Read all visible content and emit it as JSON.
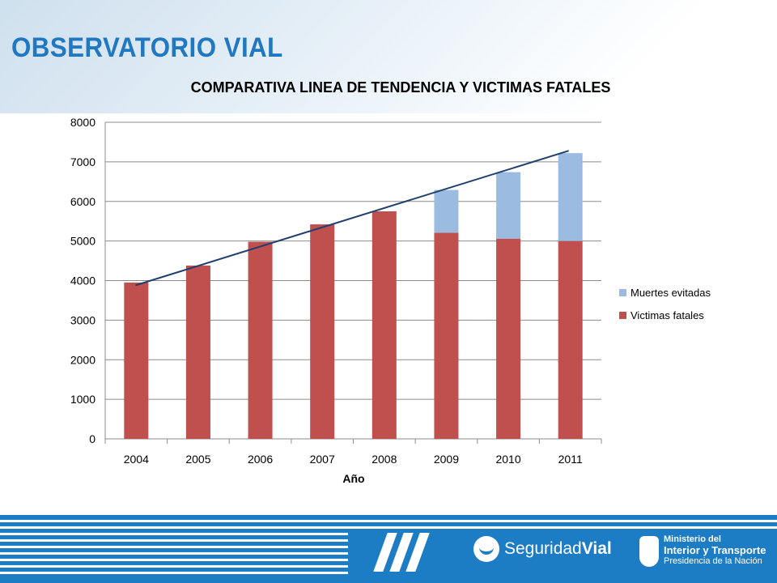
{
  "header": {
    "brand": "OBSERVATORIO VIAL"
  },
  "chart_data": {
    "type": "bar",
    "stacked": true,
    "title": "COMPARATIVA LINEA DE TENDENCIA Y VICTIMAS FATALES",
    "xlabel": "Año",
    "ylabel": "",
    "categories": [
      "2004",
      "2005",
      "2006",
      "2007",
      "2008",
      "2009",
      "2010",
      "2011"
    ],
    "ylim": [
      0,
      8000
    ],
    "yticks": [
      "0",
      "1000",
      "2000",
      "3000",
      "4000",
      "5000",
      "6000",
      "7000",
      "8000"
    ],
    "grid": true,
    "legend_position": "right",
    "series": [
      {
        "name": "Victimas fatales",
        "color": "#c0504d",
        "values": [
          3950,
          4380,
          4980,
          5420,
          5750,
          5210,
          5060,
          5000
        ]
      },
      {
        "name": "Muertes evitadas",
        "color": "#9bbbe0",
        "values": [
          0,
          0,
          0,
          0,
          0,
          1080,
          1680,
          2220
        ]
      }
    ],
    "trendline": {
      "color": "#1f3f6e",
      "start": {
        "x": "2004",
        "y": 3880
      },
      "end": {
        "x": "2011",
        "y": 7280
      }
    }
  },
  "footer": {
    "logo1": {
      "part1": "Seguridad",
      "part2": "Vial"
    },
    "logo2": {
      "line1": "Ministerio del",
      "line2": "Interior y Transporte",
      "line3": "Presidencia de la Nación"
    }
  }
}
